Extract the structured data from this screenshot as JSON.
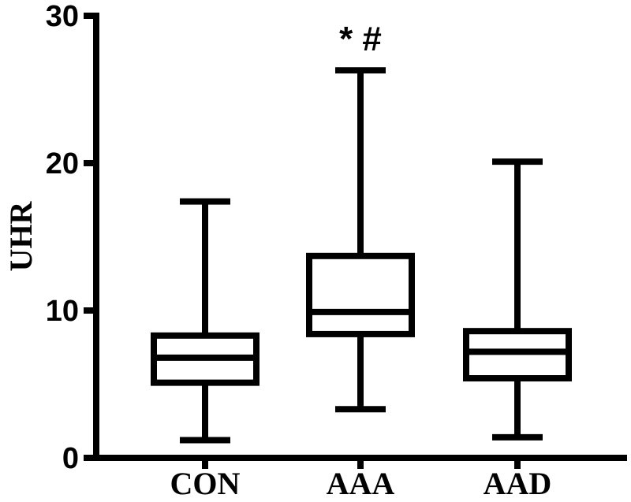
{
  "chart_data": {
    "type": "box",
    "ylabel": "UHR",
    "ylim": [
      0,
      30
    ],
    "yticks": [
      0,
      10,
      20,
      30
    ],
    "categories": [
      "CON",
      "AAA",
      "AAD"
    ],
    "boxes": [
      {
        "category": "CON",
        "min": 1.2,
        "q1": 5.1,
        "median": 6.8,
        "q3": 8.3,
        "max": 17.4
      },
      {
        "category": "AAA",
        "min": 3.3,
        "q1": 8.4,
        "median": 9.9,
        "q3": 13.7,
        "max": 26.3
      },
      {
        "category": "AAD",
        "min": 1.4,
        "q1": 5.4,
        "median": 7.2,
        "q3": 8.6,
        "max": 20.1
      }
    ],
    "annotations": [
      {
        "category": "AAA",
        "text": "*   #"
      }
    ],
    "grid": false,
    "colors": {
      "line": "#000000",
      "box_fill": "#ffffff"
    }
  }
}
